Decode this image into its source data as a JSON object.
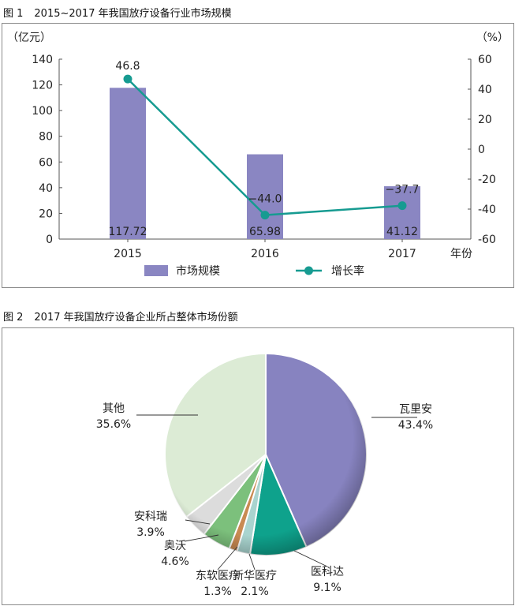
{
  "figure1": {
    "number": "图 1",
    "title": "2015~2017 年我国放疗设备行业市场规模",
    "chart_data": {
      "type": "bar",
      "title": "2015~2017 年我国放疗设备行业市场规模",
      "categories": [
        "2015",
        "2016",
        "2017"
      ],
      "xlabel": "年份",
      "ylabel": "（亿元）",
      "ylabel_right": "（%）",
      "ylim": [
        0,
        140
      ],
      "ylim_right": [
        -60,
        60
      ],
      "yticks": [
        "0",
        "20",
        "40",
        "60",
        "80",
        "100",
        "120",
        "140"
      ],
      "yticks_right": [
        "-60",
        "-40",
        "-20",
        "0",
        "20",
        "40",
        "60"
      ],
      "grid": false,
      "legend_position": "bottom",
      "series": [
        {
          "name": "市场规模",
          "type": "bar",
          "axis": "left",
          "values": [
            117.72,
            65.98,
            41.12
          ],
          "labels": [
            "117.72",
            "65.98",
            "41.12"
          ],
          "color": "#8a86c2"
        },
        {
          "name": "增长率",
          "type": "line",
          "axis": "right",
          "values": [
            46.8,
            -44.0,
            -37.7
          ],
          "labels": [
            "46.8",
            "−44.0",
            "−37.7"
          ],
          "color": "#169b91"
        }
      ]
    }
  },
  "figure2": {
    "number": "图 2",
    "title": "2017 年我国放疗设备企业所占整体市场份额",
    "chart_data": {
      "type": "pie",
      "title": "2017 年我国放疗设备企业所占整体市场份额",
      "slices": [
        {
          "label": "瓦里安",
          "value": 43.4,
          "value_label": "43.4%",
          "color": "#8783c0"
        },
        {
          "label": "医科达",
          "value": 9.1,
          "value_label": "9.1%",
          "color": "#0ea28c"
        },
        {
          "label": "新华医疗",
          "value": 2.1,
          "value_label": "2.1%",
          "color": "#a9d4cf"
        },
        {
          "label": "东软医疗",
          "value": 1.3,
          "value_label": "1.3%",
          "color": "#c98a52"
        },
        {
          "label": "奥沃",
          "value": 4.6,
          "value_label": "4.6%",
          "color": "#7cc07c"
        },
        {
          "label": "安科瑞",
          "value": 3.9,
          "value_label": "3.9%",
          "color": "#dcdcdc"
        },
        {
          "label": "其他",
          "value": 35.6,
          "value_label": "35.6%",
          "color": "#dcebd5"
        }
      ]
    }
  }
}
